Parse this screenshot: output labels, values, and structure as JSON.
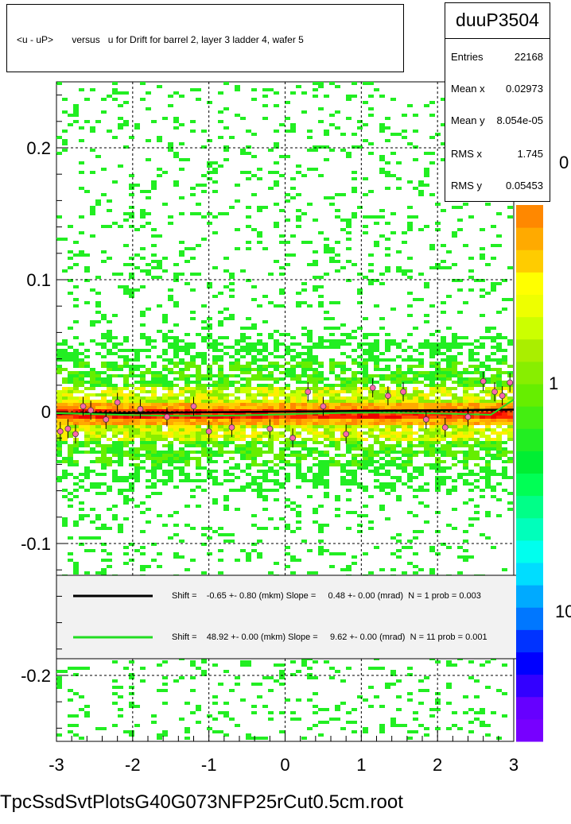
{
  "title": "<u - uP>       versus   u for Drift for barrel 2, layer 3 ladder 4, wafer 5",
  "stats": {
    "name": "duuP3504",
    "rows": [
      {
        "key": "Entries",
        "value": "22168"
      },
      {
        "key": "Mean x",
        "value": "0.02973"
      },
      {
        "key": "Mean y",
        "value": "8.054e-05"
      },
      {
        "key": "RMS x",
        "value": "1.745"
      },
      {
        "key": "RMS y",
        "value": "0.05453"
      }
    ]
  },
  "footer": "TpcSsdSvtPlotsG40G073NFP25rCut0.5cm.root",
  "colors": {
    "black_fit": "#000000",
    "green_fit": "#22dd22",
    "profile_points": "#ff66aa",
    "scatter_sparse": "#22ee22",
    "band_core": "#ff2200"
  },
  "legend": [
    {
      "color": "#000000",
      "text": "Shift =    -0.65 +- 0.80 (mkm) Slope =     0.48 +- 0.00 (mrad)  N = 1 prob = 0.003"
    },
    {
      "color": "#22dd22",
      "text": "Shift =    48.92 +- 0.00 (mkm) Slope =     9.62 +- 0.00 (mrad)  N = 11 prob = 0.001"
    }
  ],
  "chart_data": {
    "type": "heatmap",
    "title": "<u - uP>       versus   u for Drift for barrel 2, layer 3 ladder 4, wafer 5",
    "xlabel": "",
    "ylabel": "",
    "xlim": [
      -3,
      3
    ],
    "ylim": [
      -0.25,
      0.25
    ],
    "x_ticks": [
      "-3",
      "-2",
      "-1",
      "0",
      "1",
      "2",
      "3"
    ],
    "y_ticks": [
      "-0.2",
      "-0.1",
      "0",
      "0.1",
      "0.2"
    ],
    "grid": true,
    "z_scale": "log",
    "z_tick_labels": [
      "10",
      "1",
      "0"
    ],
    "band_center_y": 0.0,
    "band_halfwidth_y": 0.01,
    "scatter_halfwidth_y": 0.06,
    "fits": [
      {
        "name": "black",
        "shift_mkm": -0.65,
        "slope_mrad": 0.48
      },
      {
        "name": "green",
        "shift_mkm": 48.92,
        "slope_mrad": 9.62
      }
    ],
    "profile_points": [
      {
        "x": -2.95,
        "y": -0.015
      },
      {
        "x": -2.85,
        "y": -0.013
      },
      {
        "x": -2.75,
        "y": -0.017
      },
      {
        "x": -2.65,
        "y": 0.004
      },
      {
        "x": -2.55,
        "y": 0.001
      },
      {
        "x": -2.35,
        "y": -0.006
      },
      {
        "x": -2.2,
        "y": 0.007
      },
      {
        "x": -1.9,
        "y": 0.002
      },
      {
        "x": -1.55,
        "y": -0.004
      },
      {
        "x": -1.2,
        "y": 0.004
      },
      {
        "x": -1.0,
        "y": -0.015
      },
      {
        "x": -0.7,
        "y": -0.012
      },
      {
        "x": -0.2,
        "y": -0.013
      },
      {
        "x": 0.1,
        "y": -0.02
      },
      {
        "x": 0.3,
        "y": 0.015
      },
      {
        "x": 0.5,
        "y": 0.004
      },
      {
        "x": 0.8,
        "y": -0.017
      },
      {
        "x": 1.15,
        "y": 0.018
      },
      {
        "x": 1.35,
        "y": 0.012
      },
      {
        "x": 1.55,
        "y": 0.015
      },
      {
        "x": 1.85,
        "y": -0.006
      },
      {
        "x": 2.1,
        "y": -0.012
      },
      {
        "x": 2.4,
        "y": -0.004
      },
      {
        "x": 2.6,
        "y": 0.023
      },
      {
        "x": 2.75,
        "y": 0.015
      },
      {
        "x": 2.85,
        "y": 0.012
      },
      {
        "x": 2.95,
        "y": 0.022
      }
    ]
  }
}
